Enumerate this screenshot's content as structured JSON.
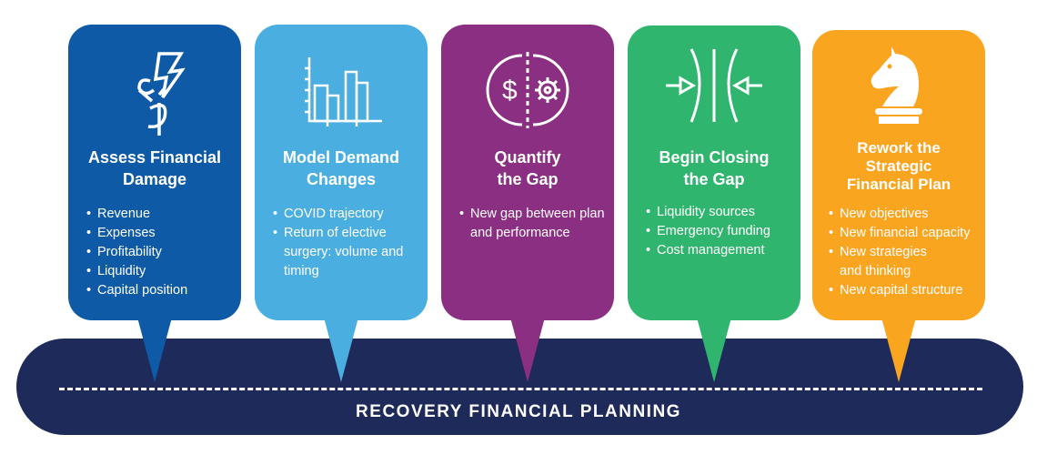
{
  "colors": {
    "blue": "#0e5aa7",
    "light_blue": "#4aaee0",
    "purple": "#8a2f82",
    "green": "#2fb56e",
    "orange": "#f9a51f",
    "navy": "#1e2a5a"
  },
  "footer": {
    "label": "RECOVERY FINANCIAL PLANNING"
  },
  "steps": [
    {
      "icon": "broken-dollar-lightning-icon",
      "title_lines": [
        "Assess Financial",
        "Damage"
      ],
      "items": [
        "Revenue",
        "Expenses",
        "Profitability",
        "Liquidity",
        "Capital position"
      ]
    },
    {
      "icon": "bar-chart-icon",
      "title_lines": [
        "Model Demand",
        "Changes"
      ],
      "items": [
        "COVID trajectory",
        "Return of elective surgery: volume and timing"
      ]
    },
    {
      "icon": "dollar-gear-gap-icon",
      "title_lines": [
        "Quantify",
        "the Gap"
      ],
      "items": [
        "New gap between plan and performance"
      ]
    },
    {
      "icon": "closing-gap-arrows-icon",
      "title_lines": [
        "Begin Closing",
        "the Gap"
      ],
      "items": [
        "Liquidity sources",
        "Emergency funding",
        "Cost management"
      ]
    },
    {
      "icon": "chess-knight-icon",
      "title_lines": [
        "Rework the",
        "Strategic",
        "Financial Plan"
      ],
      "items": [
        "New objectives",
        "New financial capacity",
        "New strategies and thinking",
        "New capital structure"
      ]
    }
  ]
}
